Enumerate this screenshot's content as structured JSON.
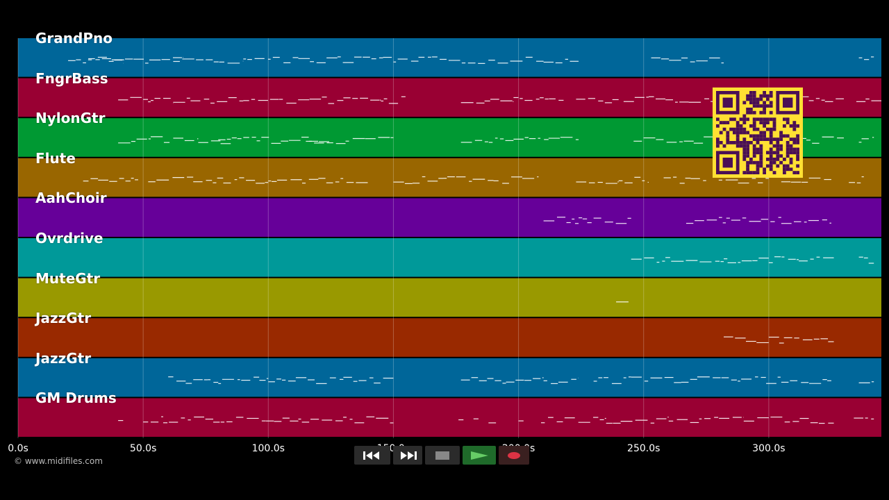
{
  "app": {
    "copyright": "© www.midifiles.com",
    "grid_color": "#ffffff"
  },
  "timeline": {
    "ticks": [
      {
        "t": 0,
        "label": "0.0s"
      },
      {
        "t": 50,
        "label": "50.0s"
      },
      {
        "t": 100,
        "label": "100.0s"
      },
      {
        "t": 150,
        "label": "150.0s"
      },
      {
        "t": 200,
        "label": "200.0s"
      },
      {
        "t": 250,
        "label": "250.0s"
      },
      {
        "t": 300,
        "label": "300.0s"
      }
    ],
    "range": [
      0,
      345
    ]
  },
  "tracks": [
    {
      "name": "GrandPno",
      "color": "#006699",
      "segments": [
        [
          20,
          42
        ],
        [
          28,
          66
        ],
        [
          62,
          75
        ],
        [
          75,
          90
        ],
        [
          90,
          112
        ],
        [
          112,
          150
        ],
        [
          150,
          160
        ],
        [
          160,
          210
        ],
        [
          210,
          224
        ],
        [
          253,
          282
        ],
        [
          336,
          342
        ]
      ]
    },
    {
      "name": "FngrBass",
      "color": "#990033",
      "segments": [
        [
          40,
          53
        ],
        [
          53,
          62
        ],
        [
          62,
          90
        ],
        [
          90,
          130
        ],
        [
          130,
          145
        ],
        [
          145,
          155
        ],
        [
          177,
          198
        ],
        [
          198,
          218
        ],
        [
          223,
          240
        ],
        [
          242,
          252
        ],
        [
          252,
          268
        ],
        [
          268,
          290
        ],
        [
          290,
          305
        ],
        [
          305,
          330
        ],
        [
          335,
          345
        ]
      ]
    },
    {
      "name": "NylonGtr",
      "color": "#009933",
      "segments": [
        [
          40,
          53
        ],
        [
          53,
          72
        ],
        [
          72,
          85
        ],
        [
          80,
          105
        ],
        [
          105,
          125
        ],
        [
          115,
          150
        ],
        [
          177,
          198
        ],
        [
          198,
          212
        ],
        [
          212,
          224
        ],
        [
          246,
          270
        ],
        [
          270,
          300
        ],
        [
          300,
          315
        ],
        [
          315,
          330
        ],
        [
          336,
          342
        ]
      ]
    },
    {
      "name": "Flute",
      "color": "#996600",
      "segments": [
        [
          26,
          48
        ],
        [
          52,
          70
        ],
        [
          70,
          82
        ],
        [
          82,
          100
        ],
        [
          100,
          120
        ],
        [
          120,
          140
        ],
        [
          150,
          170
        ],
        [
          170,
          190
        ],
        [
          190,
          208
        ],
        [
          223,
          240
        ],
        [
          240,
          252
        ],
        [
          258,
          275
        ],
        [
          280,
          300
        ],
        [
          305,
          325
        ],
        [
          332,
          338
        ]
      ]
    },
    {
      "name": "AahChoir",
      "color": "#660099",
      "segments": [
        [
          210,
          224
        ],
        [
          224,
          245
        ],
        [
          267,
          285
        ],
        [
          285,
          305
        ],
        [
          305,
          325
        ]
      ]
    },
    {
      "name": "Ovrdrive",
      "color": "#009999",
      "segments": [
        [
          245,
          262
        ],
        [
          262,
          282
        ],
        [
          282,
          300
        ],
        [
          300,
          312
        ],
        [
          312,
          326
        ],
        [
          336,
          342
        ]
      ]
    },
    {
      "name": "MuteGtr",
      "color": "#999900",
      "segments": [
        [
          239,
          245
        ]
      ]
    },
    {
      "name": "JazzGtr",
      "color": "#992900",
      "segments": [
        [
          282,
          300
        ],
        [
          300,
          318
        ],
        [
          318,
          326
        ]
      ]
    },
    {
      "name": "JazzGtr",
      "color": "#006699",
      "segments": [
        [
          60,
          67
        ],
        [
          67,
          80
        ],
        [
          80,
          100
        ],
        [
          100,
          111
        ],
        [
          111,
          130
        ],
        [
          130,
          150
        ],
        [
          177,
          195
        ],
        [
          195,
          210
        ],
        [
          210,
          224
        ],
        [
          230,
          245
        ],
        [
          245,
          265
        ],
        [
          265,
          285
        ],
        [
          285,
          305
        ],
        [
          305,
          325
        ],
        [
          336,
          342
        ]
      ]
    },
    {
      "name": "GM Drums",
      "color": "#990033",
      "segments": [
        [
          40,
          42
        ],
        [
          50,
          52
        ],
        [
          53,
          58
        ],
        [
          58,
          78
        ],
        [
          78,
          112
        ],
        [
          112,
          150
        ],
        [
          176,
          178
        ],
        [
          182,
          184
        ],
        [
          188,
          191
        ],
        [
          200,
          202
        ],
        [
          209,
          235
        ],
        [
          235,
          260
        ],
        [
          260,
          290
        ],
        [
          290,
          320
        ],
        [
          320,
          326
        ],
        [
          334,
          342
        ]
      ]
    }
  ],
  "transport": {
    "rewind_icon": "rewind-icon",
    "forward_icon": "fast-forward-icon",
    "stop_icon": "stop-icon",
    "play_icon": "play-icon",
    "record_icon": "record-icon",
    "play_color": "#66cc66",
    "record_color": "#dd3344",
    "button_bg": "#2b2b2b"
  },
  "qr": {
    "fg": "#ffe033",
    "bg": "#4a0f55"
  }
}
